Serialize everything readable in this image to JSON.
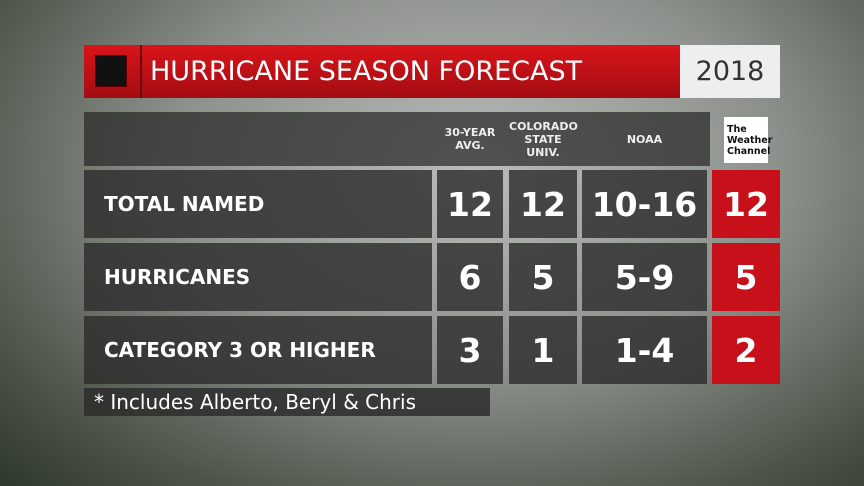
{
  "header": {
    "title": "HURRICANE SEASON FORECAST",
    "year": "2018"
  },
  "table": {
    "columns": [
      [
        "30-YEAR",
        "AVG."
      ],
      [
        "COLORADO",
        "STATE",
        "UNIV."
      ],
      [
        "NOAA"
      ],
      [
        "The",
        "Weather",
        "Channel"
      ]
    ],
    "rows": [
      [
        "TOTAL NAMED",
        "12",
        "12",
        "10-16",
        "12"
      ],
      [
        "HURRICANES",
        "6",
        "5",
        "5-9",
        "5"
      ],
      [
        "CATEGORY 3 OR HIGHER",
        "3",
        "1",
        "1-4",
        "2"
      ]
    ]
  },
  "footnote": "* Includes Alberto, Beryl & Chris"
}
